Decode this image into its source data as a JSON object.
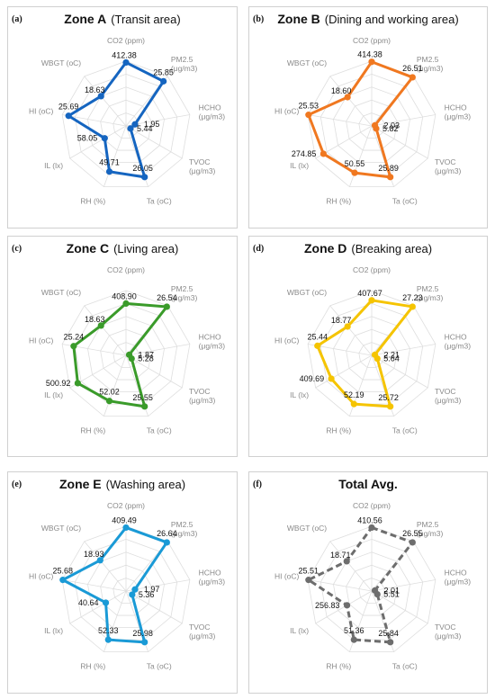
{
  "axes": [
    [
      "CO2 (ppm)"
    ],
    [
      "PM2.5",
      "(μg/m3)"
    ],
    [
      "HCHO",
      "(μg/m3)"
    ],
    [
      "TVOC",
      "(μg/m3)"
    ],
    [
      "Ta (oC)"
    ],
    [
      "RH (%)"
    ],
    [
      "IL (lx)"
    ],
    [
      "HI (oC)"
    ],
    [
      "WBGT (oC)"
    ]
  ],
  "chart_data": [
    {
      "type": "radar",
      "panel_label": "(a)",
      "title_bold": "Zone A",
      "title_rest": "(Transit area)",
      "color": "#1565c0",
      "dashed": false,
      "categories": [
        "CO2 (ppm)",
        "PM2.5 (μg/m3)",
        "HCHO (μg/m3)",
        "TVOC (μg/m3)",
        "Ta (oC)",
        "RH (%)",
        "IL (lx)",
        "HI (oC)",
        "WBGT (oC)"
      ],
      "values": [
        412.38,
        25.85,
        1.95,
        5.44,
        26.05,
        49.71,
        58.05,
        25.69,
        18.63
      ],
      "labels": [
        "412.38",
        "25.85",
        "1.95",
        "5.44",
        "26.05",
        "49.71",
        "58.05",
        "25.69",
        "18.63"
      ],
      "r": [
        0.98,
        0.9,
        0.14,
        0.08,
        0.84,
        0.75,
        0.38,
        0.9,
        0.6
      ]
    },
    {
      "type": "radar",
      "panel_label": "(b)",
      "title_bold": "Zone B",
      "title_rest": "(Dining and working area)",
      "color": "#f07820",
      "dashed": false,
      "categories": [
        "CO2 (ppm)",
        "PM2.5 (μg/m3)",
        "HCHO (μg/m3)",
        "TVOC (μg/m3)",
        "Ta (oC)",
        "RH (%)",
        "IL (lx)",
        "HI (oC)",
        "WBGT (oC)"
      ],
      "values": [
        414.38,
        26.51,
        2.03,
        5.82,
        25.89,
        50.55,
        274.85,
        25.53,
        18.6
      ],
      "labels": [
        "414.38",
        "26.51",
        "2.03",
        "5.82",
        "25.89",
        "50.55",
        "274.85",
        "25.53",
        "18.60"
      ],
      "r": [
        0.99,
        0.98,
        0.05,
        0.08,
        0.84,
        0.77,
        0.86,
        0.99,
        0.58
      ]
    },
    {
      "type": "radar",
      "panel_label": "(c)",
      "title_bold": "Zone C",
      "title_rest": "(Living area)",
      "color": "#3a9b2a",
      "dashed": false,
      "categories": [
        "CO2 (ppm)",
        "PM2.5 (μg/m3)",
        "HCHO (μg/m3)",
        "TVOC (μg/m3)",
        "Ta (oC)",
        "RH (%)",
        "IL (lx)",
        "HI (oC)",
        "WBGT (oC)"
      ],
      "values": [
        408.9,
        26.54,
        1.87,
        5.28,
        25.55,
        52.02,
        500.92,
        25.24,
        18.63
      ],
      "labels": [
        "408.90",
        "26.54",
        "1.87",
        "5.28",
        "25.55",
        "52.02",
        "500.92",
        "25.24",
        "18.63"
      ],
      "r": [
        0.8,
        0.98,
        0.05,
        0.1,
        0.84,
        0.75,
        0.86,
        0.82,
        0.6
      ]
    },
    {
      "type": "radar",
      "panel_label": "(d)",
      "title_bold": "Zone D",
      "title_rest": "(Breaking area)",
      "color": "#f5c400",
      "dashed": false,
      "categories": [
        "CO2 (ppm)",
        "PM2.5 (μg/m3)",
        "HCHO (μg/m3)",
        "TVOC (μg/m3)",
        "Ta (oC)",
        "RH (%)",
        "IL (lx)",
        "HI (oC)",
        "WBGT (oC)"
      ],
      "values": [
        407.67,
        27.23,
        2.21,
        5.64,
        25.72,
        52.19,
        409.69,
        25.44,
        18.77
      ],
      "labels": [
        "407.67",
        "27.23",
        "2.21",
        "5.64",
        "25.72",
        "52.19",
        "409.69",
        "25.44",
        "18.77"
      ],
      "r": [
        0.85,
        0.98,
        0.05,
        0.1,
        0.84,
        0.8,
        0.72,
        0.85,
        0.58
      ]
    },
    {
      "type": "radar",
      "panel_label": "(e)",
      "title_bold": "Zone E",
      "title_rest": "(Washing area)",
      "color": "#1a9ad6",
      "dashed": false,
      "categories": [
        "CO2 (ppm)",
        "PM2.5 (μg/m3)",
        "HCHO (μg/m3)",
        "TVOC (μg/m3)",
        "Ta (oC)",
        "RH (%)",
        "IL (lx)",
        "HI (oC)",
        "WBGT (oC)"
      ],
      "values": [
        409.49,
        26.64,
        1.97,
        5.36,
        25.98,
        52.33,
        40.64,
        25.68,
        18.93
      ],
      "labels": [
        "409.49",
        "26.64",
        "1.97",
        "5.36",
        "25.98",
        "52.33",
        "40.64",
        "25.68",
        "18.93"
      ],
      "r": [
        0.98,
        0.98,
        0.14,
        0.11,
        0.84,
        0.8,
        0.36,
        0.99,
        0.62
      ]
    },
    {
      "type": "radar",
      "panel_label": "(f)",
      "title_bold": "Total Avg.",
      "title_rest": "",
      "color": "#6d6d6d",
      "dashed": true,
      "categories": [
        "CO2 (ppm)",
        "PM2.5 (μg/m3)",
        "HCHO (μg/m3)",
        "TVOC (μg/m3)",
        "Ta (oC)",
        "RH (%)",
        "IL (lx)",
        "HI (oC)",
        "WBGT (oC)"
      ],
      "values": [
        410.56,
        26.55,
        2.01,
        5.51,
        25.84,
        51.36,
        256.83,
        25.51,
        18.71
      ],
      "labels": [
        "410.56",
        "26.55",
        "2.01",
        "5.51",
        "25.84",
        "51.36",
        "256.83",
        "25.51",
        "18.71"
      ],
      "r": [
        0.98,
        0.98,
        0.05,
        0.1,
        0.84,
        0.8,
        0.44,
        0.99,
        0.6
      ]
    }
  ]
}
